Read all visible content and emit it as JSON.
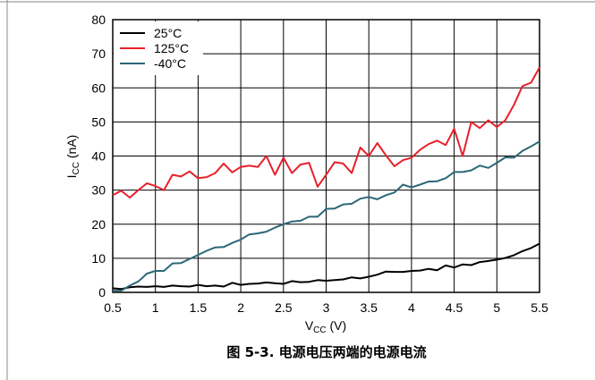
{
  "chart_data": {
    "type": "line",
    "xlabel": {
      "main": "V",
      "sub": "CC",
      "unit": " (V)"
    },
    "ylabel": {
      "main": "I",
      "sub": "CC",
      "unit": " (nA)"
    },
    "xlim": [
      0.5,
      5.5
    ],
    "ylim": [
      0,
      80
    ],
    "x_ticks": [
      "0.5",
      "1",
      "1.5",
      "2",
      "2.5",
      "3",
      "3.5",
      "4",
      "4.5",
      "5",
      "5.5"
    ],
    "y_ticks": [
      "0",
      "10",
      "20",
      "30",
      "40",
      "50",
      "60",
      "70",
      "80"
    ],
    "grid": true,
    "legend": "top-left",
    "series": [
      {
        "name": "25°C",
        "color": "#000000",
        "x": [
          0.5,
          0.6,
          0.7,
          0.8,
          0.9,
          1.0,
          1.1,
          1.2,
          1.3,
          1.4,
          1.5,
          1.6,
          1.7,
          1.8,
          1.9,
          2.0,
          2.1,
          2.2,
          2.3,
          2.4,
          2.5,
          2.6,
          2.7,
          2.8,
          2.9,
          3.0,
          3.1,
          3.2,
          3.3,
          3.4,
          3.5,
          3.6,
          3.7,
          3.8,
          3.9,
          4.0,
          4.1,
          4.2,
          4.3,
          4.4,
          4.5,
          4.6,
          4.7,
          4.8,
          4.9,
          5.0,
          5.1,
          5.2,
          5.3,
          5.4,
          5.5
        ],
        "values": [
          1.2,
          1.0,
          1.5,
          1.7,
          1.6,
          1.8,
          1.6,
          2.0,
          1.8,
          1.7,
          2.2,
          1.8,
          2.0,
          1.7,
          2.8,
          2.2,
          2.5,
          2.6,
          2.9,
          2.7,
          2.5,
          3.3,
          3.0,
          3.1,
          3.6,
          3.4,
          3.6,
          3.8,
          4.4,
          4.1,
          4.6,
          5.2,
          6.1,
          6.0,
          6.0,
          6.3,
          6.4,
          6.9,
          6.5,
          7.9,
          7.3,
          8.2,
          8.0,
          8.9,
          9.2,
          9.6,
          10.1,
          10.9,
          12.1,
          13.0,
          14.3
        ]
      },
      {
        "name": "125°C",
        "color": "#e8202a",
        "x": [
          0.5,
          0.6,
          0.7,
          0.8,
          0.9,
          1.0,
          1.1,
          1.2,
          1.3,
          1.4,
          1.5,
          1.6,
          1.7,
          1.8,
          1.9,
          2.0,
          2.1,
          2.2,
          2.3,
          2.4,
          2.5,
          2.6,
          2.7,
          2.8,
          2.9,
          3.0,
          3.1,
          3.2,
          3.3,
          3.4,
          3.5,
          3.6,
          3.7,
          3.8,
          3.9,
          4.0,
          4.1,
          4.2,
          4.3,
          4.4,
          4.5,
          4.6,
          4.7,
          4.8,
          4.9,
          5.0,
          5.1,
          5.2,
          5.3,
          5.4,
          5.5
        ],
        "values": [
          28.5,
          29.8,
          27.8,
          30.0,
          32.0,
          31.2,
          30.0,
          34.5,
          34.0,
          35.5,
          33.5,
          33.8,
          35.0,
          37.8,
          35.2,
          36.8,
          37.2,
          36.8,
          40.0,
          34.5,
          39.5,
          35.0,
          37.5,
          38.0,
          31.0,
          34.5,
          38.2,
          37.8,
          35.0,
          42.5,
          40.0,
          43.8,
          40.2,
          37.0,
          38.8,
          39.5,
          41.8,
          43.5,
          44.5,
          43.2,
          48.0,
          40.0,
          50.0,
          48.2,
          50.5,
          48.5,
          50.5,
          55.0,
          60.5,
          61.5,
          66.0
        ]
      },
      {
        "name": "-40°C",
        "color": "#2b6777",
        "x": [
          0.5,
          0.6,
          0.7,
          0.8,
          0.9,
          1.0,
          1.1,
          1.2,
          1.3,
          1.4,
          1.5,
          1.6,
          1.7,
          1.8,
          1.9,
          2.0,
          2.1,
          2.2,
          2.3,
          2.4,
          2.5,
          2.6,
          2.7,
          2.8,
          2.9,
          3.0,
          3.1,
          3.2,
          3.3,
          3.4,
          3.5,
          3.6,
          3.7,
          3.8,
          3.9,
          4.0,
          4.1,
          4.2,
          4.3,
          4.4,
          4.5,
          4.6,
          4.7,
          4.8,
          4.9,
          5.0,
          5.1,
          5.2,
          5.3,
          5.4,
          5.5
        ],
        "values": [
          0.5,
          0.5,
          2.0,
          3.2,
          5.5,
          6.3,
          6.3,
          8.5,
          8.6,
          9.8,
          11.0,
          12.2,
          13.2,
          13.3,
          14.5,
          15.5,
          17.0,
          17.3,
          17.8,
          19.0,
          20.0,
          20.8,
          21.0,
          22.2,
          22.2,
          24.5,
          24.6,
          25.8,
          26.0,
          27.5,
          28.0,
          27.3,
          28.5,
          29.3,
          31.6,
          30.8,
          31.6,
          32.5,
          32.6,
          33.5,
          35.3,
          35.3,
          35.8,
          37.2,
          36.5,
          38.0,
          39.6,
          39.5,
          41.5,
          42.8,
          44.3
        ]
      }
    ]
  },
  "caption": "图 5-3. 电源电压两端的电源电流"
}
